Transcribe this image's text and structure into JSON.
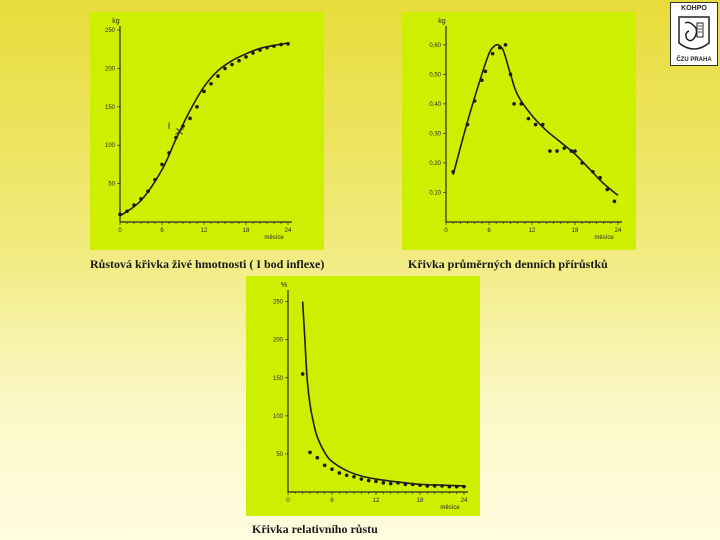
{
  "logo": {
    "top_text": "KOHPO",
    "bottom_text": "ČZU PRAHA"
  },
  "chart_data": [
    {
      "type": "scatter",
      "caption": "Růstová křivka živé hmotnosti ( I bod inflexe)",
      "xlabel": "měsíce",
      "yunit": "kg",
      "xlim": [
        0,
        24
      ],
      "ylim": [
        0,
        250
      ],
      "xticks": [
        "0",
        "6",
        "12",
        "18",
        "24"
      ],
      "yticks": [
        "50",
        "100",
        "150",
        "200",
        "250"
      ],
      "annotation": "I",
      "annotation_x": 7,
      "annotation_y": 121,
      "points_x": [
        0,
        1,
        2,
        3,
        4,
        5,
        6,
        7,
        8,
        9,
        10,
        11,
        12,
        13,
        14,
        15,
        16,
        17,
        18,
        19,
        20,
        21,
        22,
        23,
        24
      ],
      "points_y": [
        10,
        14,
        22,
        30,
        40,
        55,
        75,
        90,
        110,
        125,
        135,
        150,
        170,
        180,
        190,
        200,
        205,
        210,
        215,
        220,
        224,
        227,
        229,
        231,
        232
      ],
      "curve_x": [
        0,
        3,
        6,
        8,
        10,
        12,
        14,
        16,
        18,
        20,
        22,
        24
      ],
      "curve_y": [
        8,
        28,
        68,
        108,
        145,
        176,
        197,
        210,
        219,
        226,
        230,
        233
      ],
      "inflection_x": 8.5,
      "inflection_y": 118
    },
    {
      "type": "scatter",
      "caption": "Křivka průměrných denních přírůstků",
      "xlabel": "měsíce",
      "yunit": "kg",
      "xlim": [
        0,
        24
      ],
      "ylim": [
        0,
        0.65
      ],
      "xticks": [
        "0",
        "6",
        "12",
        "18",
        "24"
      ],
      "yticks": [
        "0,10",
        "0,20",
        "0,30",
        "0,40",
        "0,50",
        "0,60"
      ],
      "points_x": [
        1,
        3,
        4,
        5,
        5.5,
        6.5,
        7.5,
        8.3,
        9,
        9.5,
        10.5,
        11.5,
        12.5,
        13.5,
        14.5,
        15.5,
        16.5,
        17.5,
        18,
        19,
        20.5,
        21.5,
        22.5,
        23.5
      ],
      "points_y": [
        0.17,
        0.33,
        0.41,
        0.48,
        0.51,
        0.57,
        0.59,
        0.6,
        0.5,
        0.4,
        0.4,
        0.35,
        0.33,
        0.33,
        0.24,
        0.24,
        0.25,
        0.24,
        0.24,
        0.2,
        0.17,
        0.15,
        0.11,
        0.07
      ],
      "curve_x": [
        1,
        3,
        5,
        6,
        6.5,
        7.2,
        8,
        9,
        10,
        12,
        14,
        16,
        18,
        20,
        22,
        24
      ],
      "curve_y": [
        0.16,
        0.34,
        0.5,
        0.57,
        0.59,
        0.6,
        0.58,
        0.5,
        0.43,
        0.36,
        0.31,
        0.27,
        0.23,
        0.18,
        0.13,
        0.09
      ]
    },
    {
      "type": "scatter",
      "caption": "Křivka relativního růstu",
      "xlabel": "měsíce",
      "yunit": "%",
      "xlim": [
        0,
        24
      ],
      "ylim": [
        0,
        260
      ],
      "xticks": [
        "0",
        "6",
        "12",
        "18",
        "24"
      ],
      "yticks": [
        "50",
        "100",
        "150",
        "200",
        "250"
      ],
      "points_x": [
        2,
        3,
        4,
        5,
        6,
        7,
        8,
        9,
        10,
        11,
        12,
        13,
        14,
        15,
        16,
        17,
        18,
        19,
        20,
        21,
        22,
        23,
        24
      ],
      "points_y": [
        155,
        52,
        45,
        35,
        30,
        25,
        22,
        20,
        17,
        15,
        14,
        12,
        11,
        12,
        10,
        10,
        9,
        8,
        8,
        8,
        7,
        7,
        7
      ],
      "curve_x": [
        2,
        2.3,
        2.6,
        3,
        3.5,
        4,
        5,
        6,
        8,
        10,
        12,
        15,
        18,
        21,
        24
      ],
      "curve_y": [
        250,
        200,
        150,
        115,
        90,
        72,
        52,
        40,
        28,
        21,
        17,
        13,
        10,
        9,
        8
      ]
    }
  ]
}
